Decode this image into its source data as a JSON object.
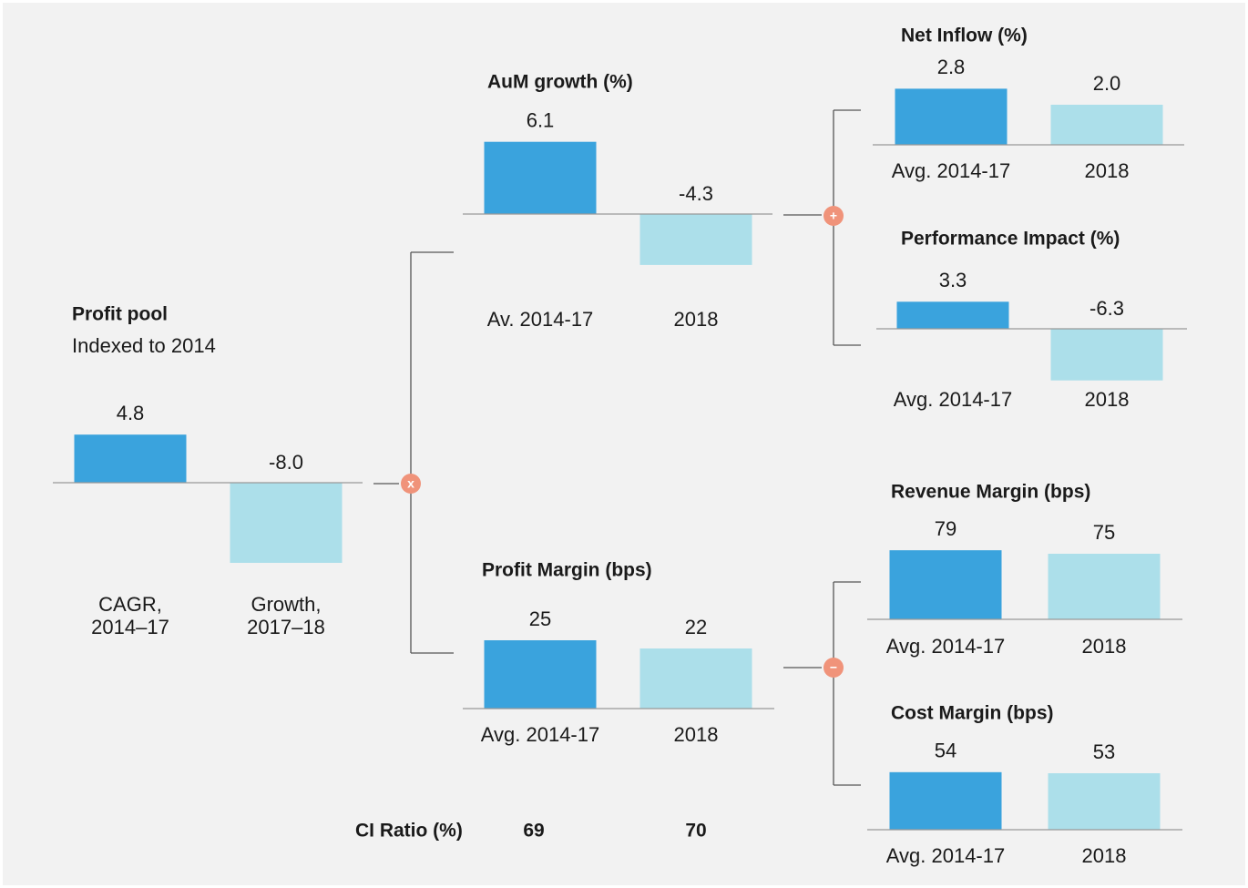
{
  "panels": [
    {
      "title": "Profit pool",
      "subtitle": "Indexed to 2014",
      "categories": [
        [
          "CAGR,",
          "2014–17"
        ],
        [
          "Growth,",
          "2017–18"
        ]
      ],
      "values": [
        4.8,
        -8.0
      ],
      "value_labels": [
        "4.8",
        "-8.0"
      ]
    },
    {
      "title": "AuM  growth (%)",
      "categories": [
        "Av. 2014-17",
        "2018"
      ],
      "values": [
        6.1,
        -4.3
      ],
      "value_labels": [
        "6.1",
        "-4.3"
      ]
    },
    {
      "title": "Profit Margin (bps)",
      "categories": [
        "Avg. 2014-17",
        "2018"
      ],
      "values": [
        25,
        22
      ],
      "value_labels": [
        "25",
        "22"
      ]
    },
    {
      "title": "Net Inflow (%)",
      "categories": [
        "Avg. 2014-17",
        "2018"
      ],
      "values": [
        2.8,
        2.0
      ],
      "value_labels": [
        "2.8",
        "2.0"
      ]
    },
    {
      "title": "Performance Impact (%)",
      "categories": [
        "Avg. 2014-17",
        "2018"
      ],
      "values": [
        3.3,
        -6.3
      ],
      "value_labels": [
        "3.3",
        "-6.3"
      ]
    },
    {
      "title": "Revenue Margin (bps)",
      "categories": [
        "Avg. 2014-17",
        "2018"
      ],
      "values": [
        79,
        75
      ],
      "value_labels": [
        "79",
        "75"
      ]
    },
    {
      "title": "Cost Margin (bps)",
      "categories": [
        "Avg. 2014-17",
        "2018"
      ],
      "values": [
        54,
        53
      ],
      "value_labels": [
        "54",
        "53"
      ]
    }
  ],
  "operators": [
    "x",
    "+",
    "−"
  ],
  "ci_ratio": {
    "label": "CI Ratio (%)",
    "values": [
      69,
      70
    ]
  },
  "colors": [
    "#3aa3dd",
    "#acdfea"
  ]
}
